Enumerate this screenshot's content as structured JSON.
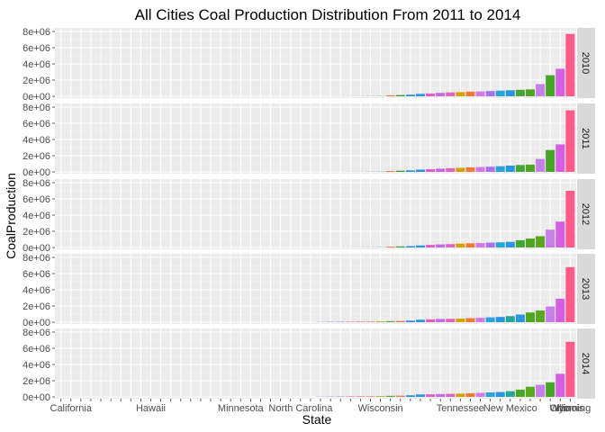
{
  "chart_data": {
    "type": "bar",
    "title": "All Cities Coal Production Distribution From 2011 to 2014",
    "xlabel": "State",
    "ylabel": "CoalProduction",
    "ylim": [
      0,
      8000000
    ],
    "y_ticks": [
      "0e+00",
      "2e+06",
      "4e+06",
      "6e+06",
      "8e+06"
    ],
    "y_tick_values": [
      0,
      2000000,
      4000000,
      6000000,
      8000000
    ],
    "x_tick_count": 52,
    "x_tick_labels": [
      {
        "index": 1,
        "label": "California"
      },
      {
        "index": 9,
        "label": "Hawaii"
      },
      {
        "index": 18,
        "label": "Minnesota"
      },
      {
        "index": 24,
        "label": "North Carolina"
      },
      {
        "index": 32,
        "label": "Wisconsin"
      },
      {
        "index": 40,
        "label": "Tennessee"
      },
      {
        "index": 45,
        "label": "New Mexico"
      },
      {
        "index": 50,
        "label": "Ohio"
      },
      {
        "index": 53,
        "label": "Illinois"
      },
      {
        "index": 57,
        "label": "Wyoming"
      }
    ],
    "grid": true,
    "legend": "none",
    "panels": [
      {
        "label": "2010",
        "values": [
          6000,
          12000,
          20000,
          30000,
          45000,
          60000,
          80000,
          120000,
          150000,
          200000,
          300000,
          350000,
          420000,
          480000,
          520000,
          580000,
          600000,
          650000,
          700000,
          750000,
          800000,
          850000,
          1500000,
          2600000,
          3400000,
          7700000
        ]
      },
      {
        "label": "2011",
        "values": [
          5000,
          10000,
          18000,
          28000,
          40000,
          55000,
          75000,
          110000,
          140000,
          190000,
          280000,
          340000,
          400000,
          460000,
          500000,
          560000,
          600000,
          640000,
          700000,
          780000,
          850000,
          900000,
          1600000,
          2700000,
          3400000,
          7600000
        ]
      },
      {
        "label": "2012",
        "values": [
          5000,
          9000,
          15000,
          25000,
          38000,
          50000,
          70000,
          100000,
          130000,
          170000,
          250000,
          320000,
          380000,
          420000,
          480000,
          520000,
          560000,
          600000,
          640000,
          700000,
          900000,
          1100000,
          1400000,
          2200000,
          3200000,
          7000000
        ]
      },
      {
        "label": "2013",
        "values": [
          30000,
          40000,
          50000,
          60000,
          70000,
          80000,
          100000,
          130000,
          150000,
          200000,
          300000,
          350000,
          400000,
          420000,
          450000,
          500000,
          550000,
          600000,
          650000,
          750000,
          950000,
          1200000,
          1450000,
          1950000,
          2900000,
          6800000
        ]
      },
      {
        "label": "2014",
        "values": [
          30000,
          40000,
          50000,
          60000,
          70000,
          80000,
          100000,
          130000,
          150000,
          200000,
          300000,
          320000,
          350000,
          380000,
          400000,
          450000,
          500000,
          550000,
          600000,
          700000,
          900000,
          1250000,
          1500000,
          1800000,
          2850000,
          6800000
        ]
      }
    ],
    "bar_colors": [
      "#e8b9d6",
      "#f0b8c4",
      "#f3bcae",
      "#f5c8a0",
      "#f0cc8d",
      "#d9c47a",
      "#cfae5d",
      "#b6b640",
      "#86b53a",
      "#4daf2b",
      "#2aaa4a",
      "#22a97a",
      "#1fa6a2",
      "#1a9ec8",
      "#3f95e6",
      "#6f8ef0",
      "#9a85f0",
      "#b97ae9",
      "#d06fdf",
      "#e066cf",
      "#ee5fb8",
      "#f45aa1",
      "#c67ee8",
      "#4aa42a",
      "#d45fe3",
      "#ff5b8a"
    ],
    "specific_bar_colors": {
      "2010": [
        "#f0b8c4",
        "#f3bcae",
        "#f5c8a0",
        "#e8b9d6",
        "#c2b3dc",
        "#b4c28a",
        "#92b46a",
        "#78b05a",
        "#ff7a5a",
        "#f0864a",
        "#2d8fe8",
        "#2ea8e2",
        "#d468df",
        "#c963e6",
        "#e46bbd",
        "#b9a400",
        "#ee7f3a",
        "#b27bf0",
        "#a46ef2",
        "#20a4d2",
        "#3f9bd8",
        "#4aa42a",
        "#5aa91c",
        "#c67ee8",
        "#4aa42a",
        "#d45fe3",
        "#ff5b8a"
      ]
    },
    "panel_bar_colors": [
      [
        "#f7d2cc",
        "#f1d0b2",
        "#e7d3a7",
        "#d9d6a7",
        "#cad6ad",
        "#bcd7b6",
        "#b0d8c2",
        "#f07a4a",
        "#3a9c36",
        "#2a8fe6",
        "#2a92e0",
        "#e05cc9",
        "#c766ea",
        "#e066bd",
        "#d3a200",
        "#ee7c35",
        "#d27ae8",
        "#ad70f0",
        "#2ba3d8",
        "#2a96e0",
        "#44a634",
        "#4da523",
        "#c67ee8",
        "#4aa42a",
        "#d45fe3",
        "#ff5b8a"
      ],
      [
        "#f7d2cc",
        "#f1d0b2",
        "#e7d3a7",
        "#d9d6a7",
        "#cad6ad",
        "#bcd7b6",
        "#b0d8c2",
        "#f07a4a",
        "#3a9c36",
        "#2a8fe6",
        "#2a92e0",
        "#e05cc9",
        "#c766ea",
        "#e066bd",
        "#d3a200",
        "#ee7c35",
        "#d27ae8",
        "#ad70f0",
        "#2ba3d8",
        "#2a96e0",
        "#44a634",
        "#4da523",
        "#c67ee8",
        "#4aa42a",
        "#d45fe3",
        "#ff5b8a"
      ],
      [
        "#f7d2cc",
        "#f1d0b2",
        "#e7d3a7",
        "#d9d6a7",
        "#cad6ad",
        "#bcd7b6",
        "#b0d8c2",
        "#f07a4a",
        "#3a9c36",
        "#2a8fe6",
        "#2a92e0",
        "#e05cc9",
        "#c766ea",
        "#e066bd",
        "#d3a200",
        "#ee7c35",
        "#d27ae8",
        "#ad70f0",
        "#2ba3d8",
        "#2a96e0",
        "#44a634",
        "#4da523",
        "#5aa91c",
        "#c67ee8",
        "#d45fe3",
        "#ff5b8a"
      ],
      [
        "#c088e0",
        "#a080e8",
        "#8e86ee",
        "#e36cc3",
        "#e2788f",
        "#ec8a66",
        "#9db73a",
        "#54a845",
        "#f07a4a",
        "#2a8fe6",
        "#2a92e0",
        "#e05cc9",
        "#c766ea",
        "#e066bd",
        "#d3a200",
        "#ee7c35",
        "#d27ae8",
        "#2ba3d8",
        "#2a96e0",
        "#26a59a",
        "#2a96e0",
        "#4da523",
        "#5aa91c",
        "#c67ee8",
        "#d45fe3",
        "#ff5b8a"
      ],
      [
        "#c088e0",
        "#a080e8",
        "#8e86ee",
        "#e36cc3",
        "#e2788f",
        "#ec8a66",
        "#9db73a",
        "#54a845",
        "#f07a4a",
        "#2a8fe6",
        "#2a92e0",
        "#e05cc9",
        "#c766ea",
        "#e066bd",
        "#d3a200",
        "#ee7c35",
        "#d27ae8",
        "#2ba3d8",
        "#2a96e0",
        "#26a59a",
        "#4da523",
        "#5aa91c",
        "#c67ee8",
        "#4aa42a",
        "#d45fe3",
        "#ff5b8a"
      ]
    ],
    "panel_background": "#ebebeb",
    "strip_background": "#d9d9d9"
  }
}
